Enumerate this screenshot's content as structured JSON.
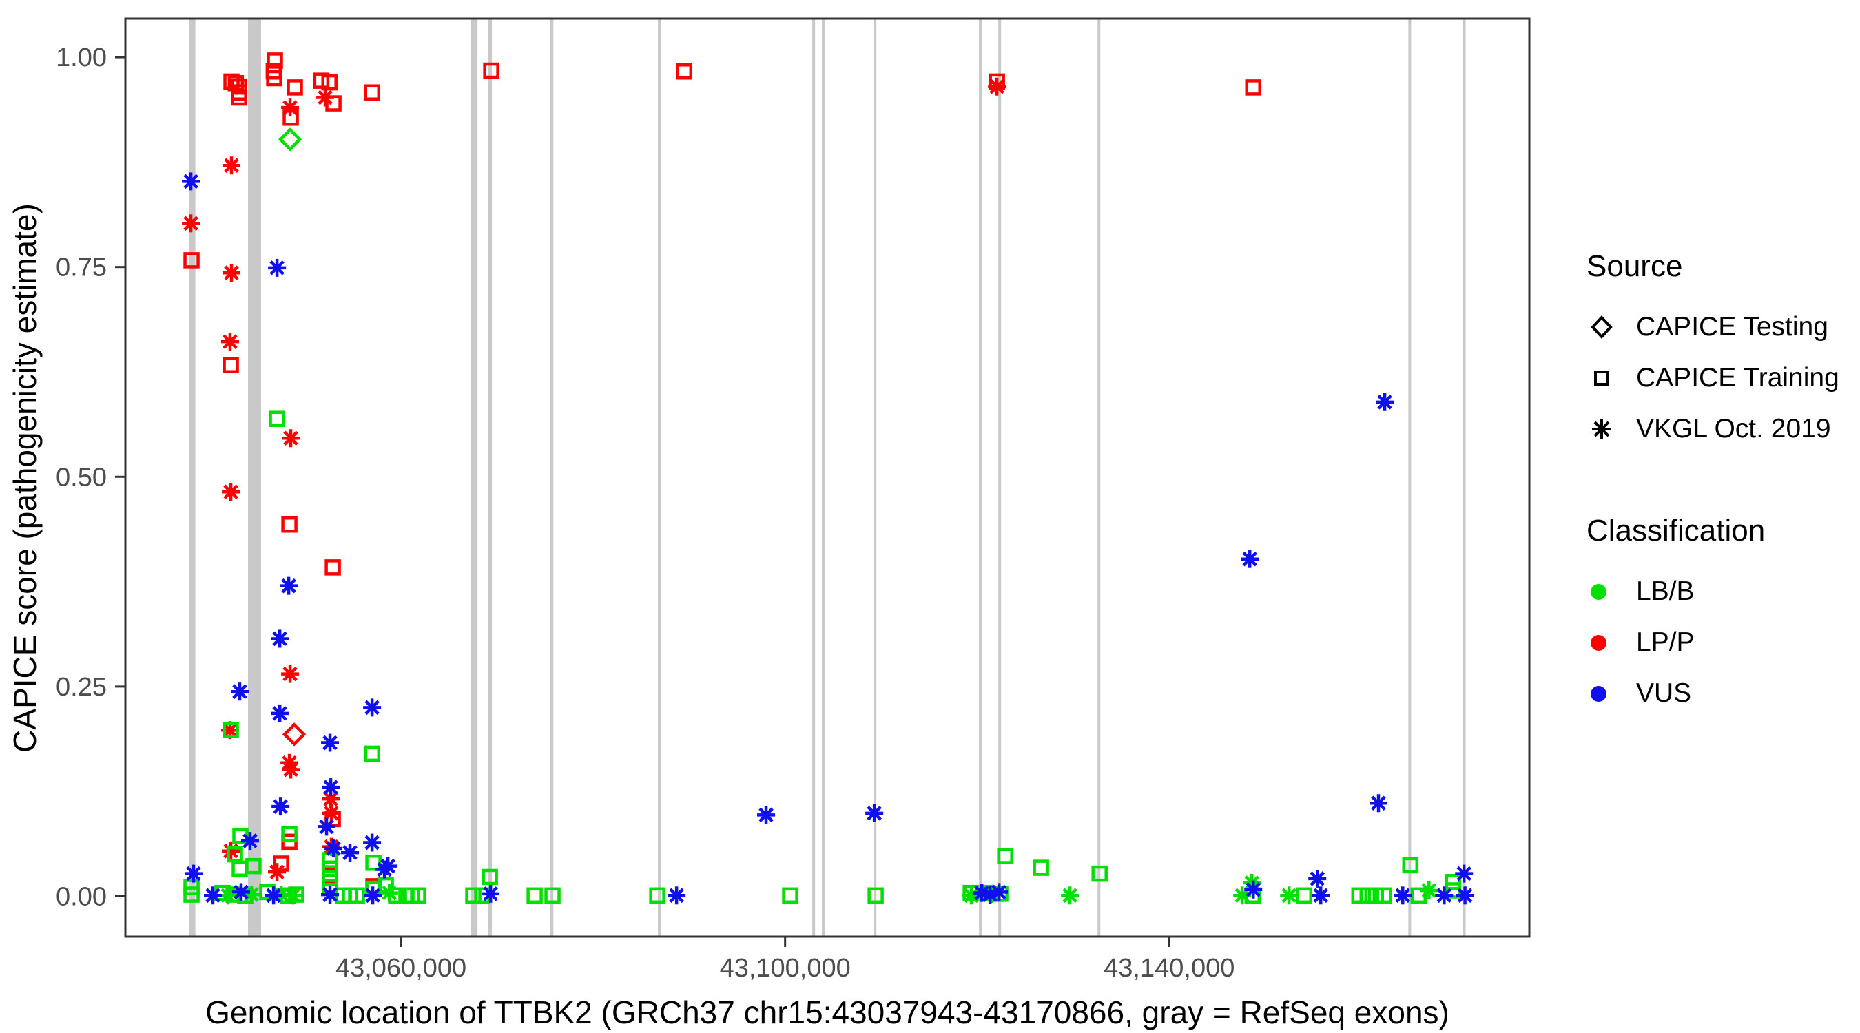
{
  "legend": {
    "source": {
      "title": "Source",
      "items": [
        {
          "label": "CAPICE Testing",
          "shape": "diamond"
        },
        {
          "label": "CAPICE Training",
          "shape": "square"
        },
        {
          "label": "VKGL Oct. 2019",
          "shape": "asterisk"
        }
      ]
    },
    "classification": {
      "title": "Classification",
      "items": [
        {
          "label": "LB/B",
          "color": "#00E000"
        },
        {
          "label": "LP/P",
          "color": "#FF0000"
        },
        {
          "label": "VUS",
          "color": "#0F0FEF"
        }
      ]
    }
  },
  "chart_data": {
    "type": "scatter",
    "xlabel": "Genomic location of TTBK2 (GRCh37 chr15:43037943-43170866, gray = RefSeq exons)",
    "ylabel": "CAPICE score (pathogenicity estimate)",
    "xlim": [
      43031300,
      43177500
    ],
    "ylim": [
      -0.048,
      1.046
    ],
    "x_ticks": [
      {
        "value": 43060000,
        "label": "43,060,000"
      },
      {
        "value": 43100000,
        "label": "43,100,000"
      },
      {
        "value": 43140000,
        "label": "43,140,000"
      }
    ],
    "y_ticks": [
      {
        "value": 0.0,
        "label": "0.00"
      },
      {
        "value": 0.25,
        "label": "0.25"
      },
      {
        "value": 0.5,
        "label": "0.50"
      },
      {
        "value": 0.75,
        "label": "0.75"
      },
      {
        "value": 1.0,
        "label": "1.00"
      }
    ],
    "exon_color": "#C9C9C9",
    "exon_note": "gray = RefSeq exons",
    "exons": [
      [
        43037940,
        43038590
      ],
      [
        43044070,
        43045430
      ],
      [
        43067250,
        43067970
      ],
      [
        43069040,
        43069470
      ],
      [
        43075500,
        43075870
      ],
      [
        43086760,
        43087070
      ],
      [
        43102830,
        43103120
      ],
      [
        43103830,
        43104120
      ],
      [
        43109215,
        43109505
      ],
      [
        43120195,
        43120415
      ],
      [
        43122200,
        43122490
      ],
      [
        43132540,
        43132830
      ],
      [
        43164900,
        43165190
      ],
      [
        43170580,
        43170866
      ]
    ],
    "source_map": {
      "sq": "CAPICE Training",
      "di": "CAPICE Testing",
      "as": "VKGL Oct. 2019"
    },
    "class_map": {
      "G": "LB/B",
      "R": "LP/P",
      "B": "VUS"
    },
    "class_colors": {
      "G": "#00E000",
      "R": "#FF0000",
      "B": "#0F0FEF"
    },
    "points": [
      [
        43042350,
        0.971,
        "sq",
        "R"
      ],
      [
        43042800,
        0.969,
        "sq",
        "R"
      ],
      [
        43043150,
        0.965,
        "sq",
        "R"
      ],
      [
        43043150,
        0.958,
        "sq",
        "R"
      ],
      [
        43043150,
        0.952,
        "sq",
        "R"
      ],
      [
        43046870,
        0.996,
        "sq",
        "R"
      ],
      [
        43046750,
        0.983,
        "sq",
        "R"
      ],
      [
        43046800,
        0.975,
        "sq",
        "R"
      ],
      [
        43048950,
        0.964,
        "sq",
        "R"
      ],
      [
        43051700,
        0.972,
        "sq",
        "R"
      ],
      [
        43052550,
        0.97,
        "sq",
        "R"
      ],
      [
        43052970,
        0.945,
        "sq",
        "R"
      ],
      [
        43057000,
        0.958,
        "sq",
        "R"
      ],
      [
        43069400,
        0.984,
        "sq",
        "R"
      ],
      [
        43089500,
        0.983,
        "sq",
        "R"
      ],
      [
        43048520,
        0.928,
        "sq",
        "R"
      ],
      [
        43042280,
        0.633,
        "sq",
        "R"
      ],
      [
        43048380,
        0.443,
        "sq",
        "R"
      ],
      [
        43052900,
        0.392,
        "sq",
        "R"
      ],
      [
        43038190,
        0.758,
        "sq",
        "R"
      ],
      [
        43048380,
        0.065,
        "sq",
        "R"
      ],
      [
        43047520,
        0.039,
        "sq",
        "R"
      ],
      [
        43052900,
        0.092,
        "sq",
        "R"
      ],
      [
        43052610,
        0.025,
        "sq",
        "R"
      ],
      [
        43122060,
        0.971,
        "sq",
        "R"
      ],
      [
        43148750,
        0.964,
        "sq",
        "R"
      ],
      [
        43057130,
        0.012,
        "sq",
        "R"
      ],
      [
        43048880,
        0.193,
        "di",
        "R"
      ],
      [
        43038120,
        0.802,
        "as",
        "R"
      ],
      [
        43042350,
        0.871,
        "as",
        "R"
      ],
      [
        43042350,
        0.743,
        "as",
        "R"
      ],
      [
        43042200,
        0.661,
        "as",
        "R"
      ],
      [
        43042280,
        0.482,
        "as",
        "R"
      ],
      [
        43052110,
        0.952,
        "as",
        "R"
      ],
      [
        43048450,
        0.94,
        "as",
        "R"
      ],
      [
        43048520,
        0.546,
        "as",
        "R"
      ],
      [
        43048450,
        0.265,
        "as",
        "R"
      ],
      [
        43042200,
        0.198,
        "as",
        "R"
      ],
      [
        43048380,
        0.159,
        "as",
        "R"
      ],
      [
        43048520,
        0.151,
        "as",
        "R"
      ],
      [
        43052680,
        0.116,
        "as",
        "R"
      ],
      [
        43052750,
        0.099,
        "as",
        "R"
      ],
      [
        43042280,
        0.054,
        "as",
        "R"
      ],
      [
        43047090,
        0.029,
        "as",
        "R"
      ],
      [
        43052750,
        0.059,
        "as",
        "R"
      ],
      [
        43122060,
        0.965,
        "as",
        "R"
      ],
      [
        43048450,
        0.902,
        "di",
        "G"
      ],
      [
        43047090,
        0.569,
        "sq",
        "G"
      ],
      [
        43042280,
        0.198,
        "sq",
        "G"
      ],
      [
        43057000,
        0.17,
        "sq",
        "G"
      ],
      [
        43048380,
        0.074,
        "sq",
        "G"
      ],
      [
        43043280,
        0.072,
        "sq",
        "G"
      ],
      [
        43042710,
        0.05,
        "sq",
        "G"
      ],
      [
        43043210,
        0.033,
        "sq",
        "G"
      ],
      [
        43044640,
        0.036,
        "sq",
        "G"
      ],
      [
        43038190,
        0.011,
        "sq",
        "G"
      ],
      [
        43038190,
        0.002,
        "sq",
        "G"
      ],
      [
        43041420,
        0.004,
        "sq",
        "G"
      ],
      [
        43042570,
        0.002,
        "sq",
        "G"
      ],
      [
        43043780,
        0.001,
        "sq",
        "G"
      ],
      [
        43046080,
        0.005,
        "sq",
        "G"
      ],
      [
        43048230,
        0.001,
        "sq",
        "G"
      ],
      [
        43049090,
        0.002,
        "sq",
        "G"
      ],
      [
        43052610,
        0.043,
        "sq",
        "G"
      ],
      [
        43052610,
        0.033,
        "sq",
        "G"
      ],
      [
        43052610,
        0.022,
        "sq",
        "G"
      ],
      [
        43052610,
        0.011,
        "sq",
        "G"
      ],
      [
        43053970,
        0.001,
        "sq",
        "G"
      ],
      [
        43054690,
        0.001,
        "sq",
        "G"
      ],
      [
        43055410,
        0.001,
        "sq",
        "G"
      ],
      [
        43057130,
        0.009,
        "sq",
        "G"
      ],
      [
        43057130,
        0.04,
        "sq",
        "G"
      ],
      [
        43058420,
        0.013,
        "sq",
        "G"
      ],
      [
        43059500,
        0.001,
        "sq",
        "G"
      ],
      [
        43060570,
        0.001,
        "sq",
        "G"
      ],
      [
        43061150,
        0.001,
        "sq",
        "G"
      ],
      [
        43061790,
        0.001,
        "sq",
        "G"
      ],
      [
        43067530,
        0.001,
        "sq",
        "G"
      ],
      [
        43068470,
        0.001,
        "sq",
        "G"
      ],
      [
        43069260,
        0.023,
        "sq",
        "G"
      ],
      [
        43073920,
        0.001,
        "sq",
        "G"
      ],
      [
        43075780,
        0.001,
        "sq",
        "G"
      ],
      [
        43086690,
        0.001,
        "sq",
        "G"
      ],
      [
        43100530,
        0.001,
        "sq",
        "G"
      ],
      [
        43109430,
        0.001,
        "sq",
        "G"
      ],
      [
        43122920,
        0.048,
        "sq",
        "G"
      ],
      [
        43126650,
        0.034,
        "sq",
        "G"
      ],
      [
        43132750,
        0.027,
        "sq",
        "G"
      ],
      [
        43148680,
        0.001,
        "sq",
        "G"
      ],
      [
        43154060,
        0.001,
        "sq",
        "G"
      ],
      [
        43159800,
        0.001,
        "sq",
        "G"
      ],
      [
        43160660,
        0.001,
        "sq",
        "G"
      ],
      [
        43161520,
        0.001,
        "sq",
        "G"
      ],
      [
        43162380,
        0.001,
        "sq",
        "G"
      ],
      [
        43165970,
        0.001,
        "sq",
        "G"
      ],
      [
        43165110,
        0.037,
        "sq",
        "G"
      ],
      [
        43169560,
        0.017,
        "sq",
        "G"
      ],
      [
        43169560,
        0.007,
        "sq",
        "G"
      ],
      [
        43119330,
        0.004,
        "sq",
        "G"
      ],
      [
        43121050,
        0.004,
        "sq",
        "G"
      ],
      [
        43122410,
        0.003,
        "sq",
        "G"
      ],
      [
        43041990,
        0.001,
        "as",
        "G"
      ],
      [
        43044430,
        0.002,
        "as",
        "G"
      ],
      [
        43047520,
        0.002,
        "as",
        "G"
      ],
      [
        43048740,
        0.001,
        "as",
        "G"
      ],
      [
        43119400,
        0.001,
        "as",
        "G"
      ],
      [
        43121560,
        0.003,
        "as",
        "G"
      ],
      [
        43129660,
        0.001,
        "as",
        "G"
      ],
      [
        43147600,
        0.001,
        "as",
        "G"
      ],
      [
        43148610,
        0.016,
        "as",
        "G"
      ],
      [
        43152480,
        0.001,
        "as",
        "G"
      ],
      [
        43167050,
        0.007,
        "as",
        "G"
      ],
      [
        43058780,
        0.004,
        "as",
        "G"
      ],
      [
        43038120,
        0.852,
        "as",
        "B"
      ],
      [
        43047090,
        0.749,
        "as",
        "B"
      ],
      [
        43048310,
        0.37,
        "as",
        "B"
      ],
      [
        43047380,
        0.307,
        "as",
        "B"
      ],
      [
        43043210,
        0.244,
        "as",
        "B"
      ],
      [
        43056990,
        0.225,
        "as",
        "B"
      ],
      [
        43047380,
        0.218,
        "as",
        "B"
      ],
      [
        43052610,
        0.183,
        "as",
        "B"
      ],
      [
        43052680,
        0.13,
        "as",
        "B"
      ],
      [
        43047450,
        0.107,
        "as",
        "B"
      ],
      [
        43052250,
        0.083,
        "as",
        "B"
      ],
      [
        43044280,
        0.066,
        "as",
        "B"
      ],
      [
        43052970,
        0.057,
        "as",
        "B"
      ],
      [
        43054690,
        0.052,
        "as",
        "B"
      ],
      [
        43056990,
        0.064,
        "as",
        "B"
      ],
      [
        43058280,
        0.032,
        "as",
        "B"
      ],
      [
        43038400,
        0.027,
        "as",
        "B"
      ],
      [
        43040410,
        0.001,
        "as",
        "B"
      ],
      [
        43043350,
        0.005,
        "as",
        "B"
      ],
      [
        43046730,
        0.001,
        "as",
        "B"
      ],
      [
        43052610,
        0.002,
        "as",
        "B"
      ],
      [
        43057060,
        0.001,
        "as",
        "B"
      ],
      [
        43069330,
        0.003,
        "as",
        "B"
      ],
      [
        43088700,
        0.001,
        "as",
        "B"
      ],
      [
        43098020,
        0.097,
        "as",
        "B"
      ],
      [
        43109290,
        0.099,
        "as",
        "B"
      ],
      [
        43148390,
        0.402,
        "as",
        "B"
      ],
      [
        43162440,
        0.589,
        "as",
        "B"
      ],
      [
        43161790,
        0.111,
        "as",
        "B"
      ],
      [
        43170700,
        0.027,
        "as",
        "B"
      ],
      [
        43155420,
        0.021,
        "as",
        "B"
      ],
      [
        43155780,
        0.001,
        "as",
        "B"
      ],
      [
        43164320,
        0.001,
        "as",
        "B"
      ],
      [
        43168630,
        0.001,
        "as",
        "B"
      ],
      [
        43170800,
        0.001,
        "as",
        "B"
      ],
      [
        43148750,
        0.008,
        "as",
        "B"
      ],
      [
        43120480,
        0.004,
        "as",
        "B"
      ],
      [
        43121340,
        0.002,
        "as",
        "B"
      ],
      [
        43122270,
        0.005,
        "as",
        "B"
      ],
      [
        43058640,
        0.036,
        "as",
        "B"
      ]
    ]
  }
}
